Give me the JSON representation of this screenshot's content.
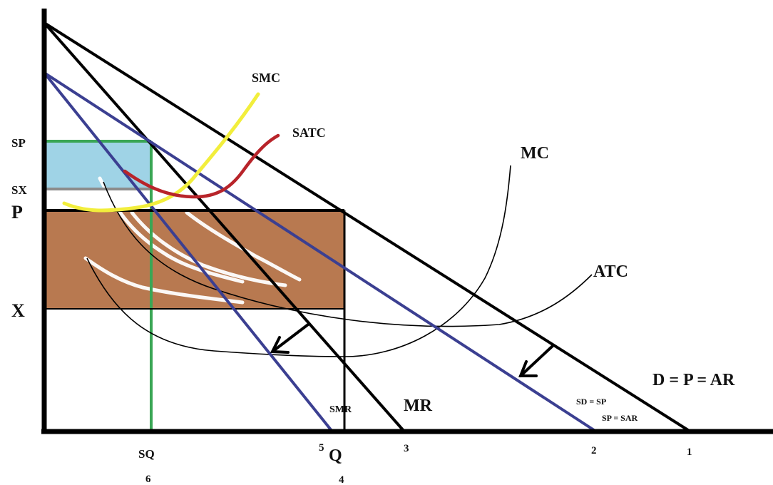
{
  "diagram": {
    "curves": {
      "smc": "SMC",
      "satc": "SATC",
      "mc": "MC",
      "atc": "ATC",
      "mr": "MR",
      "smr": "SMR",
      "demand": "D = P = AR",
      "short_demand_1": "SD = SP",
      "short_demand_2": "SP = SAR"
    },
    "y_axis_labels": {
      "sp": "SP",
      "sx": "SX",
      "p": "P",
      "x": "X"
    },
    "x_axis_labels": {
      "sq": "SQ",
      "q": "Q",
      "n1": "1",
      "n2": "2",
      "n3": "3",
      "n4": "4",
      "n5": "5",
      "n6": "6"
    },
    "colors": {
      "axes": "#000000",
      "demand_black": "#000000",
      "blue_lines": "#3b3f91",
      "green_lines": "#3aa655",
      "yellow_smc": "#f2ee3c",
      "red_satc": "#b8242a",
      "gray_line": "#8c8c8c",
      "light_blue_rect": "#9fd3e6",
      "brown_rect": "#b87950"
    }
  }
}
